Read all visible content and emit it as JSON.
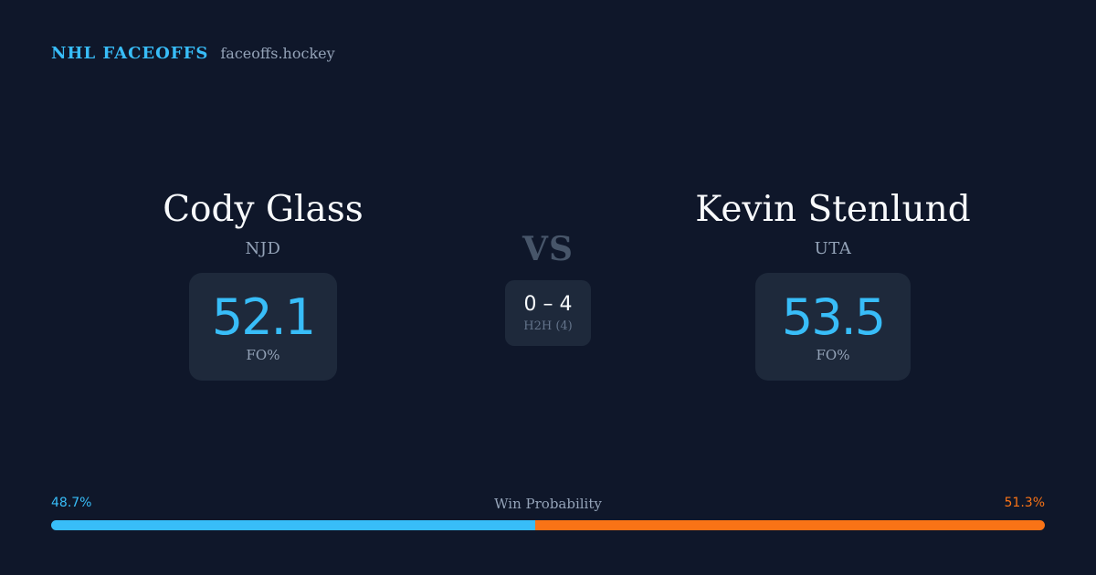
{
  "brand": {
    "name": "NHL FACEOFFS",
    "url": "faceoffs.hockey"
  },
  "player_left": {
    "name": "Cody Glass",
    "team": "NJD",
    "stat_value": "52.1",
    "stat_label": "FO%"
  },
  "player_right": {
    "name": "Kevin Stenlund",
    "team": "UTA",
    "stat_value": "53.5",
    "stat_label": "FO%"
  },
  "versus": {
    "label": "VS",
    "h2h_score": "0 – 4",
    "h2h_label": "H2H (4)"
  },
  "win_probability": {
    "title": "Win Probability",
    "left_label": "48.7%",
    "right_label": "51.3%",
    "left_value": 48.7,
    "right_value": 51.3,
    "left_color": "#38bdf8",
    "right_color": "#f97316"
  }
}
